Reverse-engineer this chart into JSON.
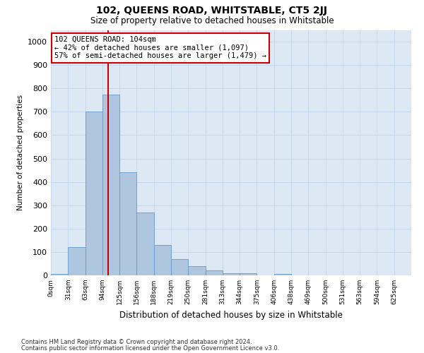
{
  "title": "102, QUEENS ROAD, WHITSTABLE, CT5 2JJ",
  "subtitle": "Size of property relative to detached houses in Whitstable",
  "xlabel": "Distribution of detached houses by size in Whitstable",
  "ylabel": "Number of detached properties",
  "bin_labels": [
    "0sqm",
    "31sqm",
    "63sqm",
    "94sqm",
    "125sqm",
    "156sqm",
    "188sqm",
    "219sqm",
    "250sqm",
    "281sqm",
    "313sqm",
    "344sqm",
    "375sqm",
    "406sqm",
    "438sqm",
    "469sqm",
    "500sqm",
    "531sqm",
    "563sqm",
    "594sqm",
    "625sqm"
  ],
  "bar_values": [
    5,
    122,
    700,
    775,
    440,
    270,
    130,
    68,
    38,
    22,
    10,
    10,
    0,
    5,
    0,
    0,
    0,
    0,
    0,
    0,
    0
  ],
  "bar_color": "#aec6e0",
  "bar_edge_color": "#6699cc",
  "grid_color": "#c8d8ec",
  "background_color": "#dde8f5",
  "vline_color": "#cc0000",
  "annotation_text": "102 QUEENS ROAD: 104sqm\n← 42% of detached houses are smaller (1,097)\n57% of semi-detached houses are larger (1,479) →",
  "annotation_box_color": "#ffffff",
  "annotation_box_edge": "#cc0000",
  "ylim": [
    0,
    1050
  ],
  "yticks": [
    0,
    100,
    200,
    300,
    400,
    500,
    600,
    700,
    800,
    900,
    1000
  ],
  "footnote1": "Contains HM Land Registry data © Crown copyright and database right 2024.",
  "footnote2": "Contains public sector information licensed under the Open Government Licence v3.0."
}
